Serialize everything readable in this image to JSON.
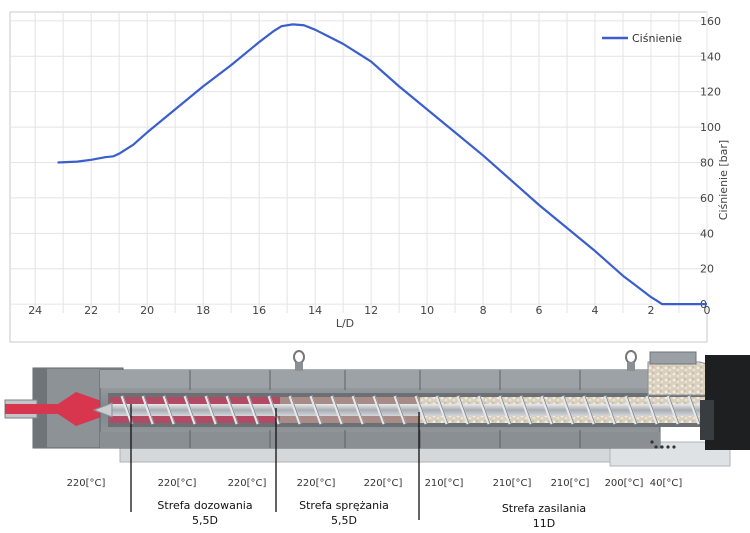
{
  "chart_data": {
    "type": "line",
    "title": "",
    "xlabel": "L/D",
    "ylabel": "Ciśnienie [bar]",
    "xlim": [
      24.9,
      0
    ],
    "ylim": [
      -5,
      165
    ],
    "x_reversed": true,
    "grid": true,
    "legend_position": "top-right",
    "x_ticks": [
      24,
      22,
      20,
      18,
      16,
      14,
      12,
      10,
      8,
      6,
      4,
      2,
      0
    ],
    "y_ticks": [
      0,
      20,
      40,
      60,
      80,
      100,
      120,
      140,
      160
    ],
    "y_axis_side": "right",
    "series": [
      {
        "name": "Ciśnienie",
        "color": "#3a5fcd",
        "x": [
          23.2,
          22.5,
          22.0,
          21.5,
          21.2,
          21.0,
          20.5,
          20.0,
          19.0,
          18.0,
          17.0,
          16.0,
          15.5,
          15.2,
          14.8,
          14.4,
          14.0,
          13.5,
          13.0,
          12.5,
          12.0,
          11.0,
          10.0,
          9.0,
          8.0,
          7.0,
          6.0,
          5.0,
          4.0,
          3.0,
          2.0,
          1.8,
          1.6,
          1.2,
          1.0,
          0.0
        ],
        "y": [
          80,
          80.5,
          81.5,
          83,
          83.5,
          85,
          90,
          97,
          110,
          123,
          135,
          148,
          154,
          157,
          158,
          157.5,
          155,
          151,
          147,
          142,
          137,
          123,
          110,
          97,
          84,
          70,
          56,
          43,
          30,
          16,
          4,
          2,
          0,
          0,
          0,
          0
        ]
      }
    ]
  },
  "diagram": {
    "temperature_labels": [
      "220[°C]",
      "220[°C]",
      "220[°C]",
      "220[°C]",
      "220[°C]",
      "210[°C]",
      "210[°C]",
      "210[°C]",
      "200[°C]",
      "40[°C]"
    ],
    "zones": [
      {
        "name": "Strefa dozowania",
        "length": "5,5D"
      },
      {
        "name": "Strefa sprężania",
        "length": "5,5D"
      },
      {
        "name": "Strefa zasilania",
        "length": "11D"
      }
    ]
  },
  "colors": {
    "barrel": "#8a8f94",
    "barrel_light": "#b9bec3",
    "barrel_dark": "#5f6468",
    "screw": "#c9ccd0",
    "melt": "#b24a63",
    "nozzle_melt": "#d8354f",
    "pellets": "#e7dfce"
  }
}
